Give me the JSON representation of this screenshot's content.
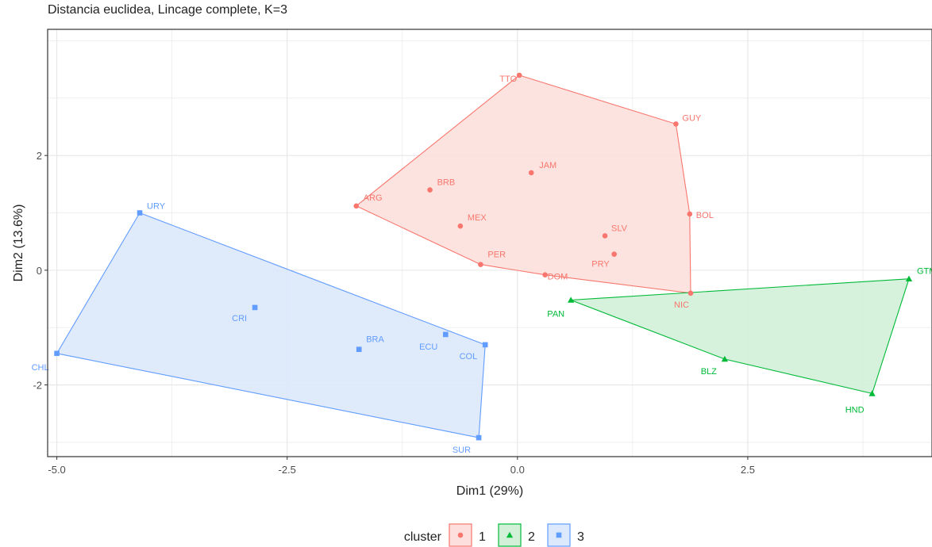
{
  "chart_data": {
    "type": "scatter",
    "title": "Distancia euclidea, Lincage complete, K=3",
    "xlabel": "Dim1 (29%)",
    "ylabel": "Dim2 (13.6%)",
    "xlim": [
      -5.1,
      4.5
    ],
    "ylim": [
      -3.25,
      4.2
    ],
    "x_ticks": [
      -5.0,
      -2.5,
      0.0,
      2.5
    ],
    "x_tick_labels": [
      "-5.0",
      "-2.5",
      "0.0",
      "2.5"
    ],
    "y_ticks": [
      -2,
      0,
      2
    ],
    "y_tick_labels": [
      "-2",
      "0",
      "2"
    ],
    "grid": true,
    "legend": {
      "title": "cluster",
      "position": "bottom",
      "entries": [
        "1",
        "2",
        "3"
      ]
    },
    "series": [
      {
        "name": "1",
        "color": "#f8766d",
        "fill": "#fde0dd",
        "marker": "circle",
        "points": [
          {
            "label": "TTO",
            "x": 0.02,
            "y": 3.4
          },
          {
            "label": "GUY",
            "x": 1.72,
            "y": 2.55
          },
          {
            "label": "JAM",
            "x": 0.15,
            "y": 1.7
          },
          {
            "label": "BRB",
            "x": -0.95,
            "y": 1.4
          },
          {
            "label": "ARG",
            "x": -1.75,
            "y": 1.12
          },
          {
            "label": "BOL",
            "x": 1.87,
            "y": 0.98
          },
          {
            "label": "MEX",
            "x": -0.62,
            "y": 0.77
          },
          {
            "label": "SLV",
            "x": 0.95,
            "y": 0.6
          },
          {
            "label": "PRY",
            "x": 1.05,
            "y": 0.28
          },
          {
            "label": "PER",
            "x": -0.4,
            "y": 0.1
          },
          {
            "label": "DOM",
            "x": 0.3,
            "y": -0.08
          },
          {
            "label": "NIC",
            "x": 1.88,
            "y": -0.4
          }
        ],
        "hull": [
          "TTO",
          "GUY",
          "BOL",
          "NIC",
          "DOM",
          "PER",
          "ARG"
        ]
      },
      {
        "name": "2",
        "color": "#00ba38",
        "fill": "#d2f0d8",
        "marker": "triangle",
        "points": [
          {
            "label": "PAN",
            "x": 0.58,
            "y": -0.52
          },
          {
            "label": "GTM",
            "x": 4.25,
            "y": -0.15
          },
          {
            "label": "BLZ",
            "x": 2.25,
            "y": -1.55
          },
          {
            "label": "HND",
            "x": 3.85,
            "y": -2.15
          }
        ],
        "hull": [
          "PAN",
          "GTM",
          "HND",
          "BLZ"
        ]
      },
      {
        "name": "3",
        "color": "#619cff",
        "fill": "#dce8fb",
        "marker": "square",
        "points": [
          {
            "label": "URY",
            "x": -4.1,
            "y": 1.0
          },
          {
            "label": "CRI",
            "x": -2.85,
            "y": -0.65
          },
          {
            "label": "BRA",
            "x": -1.72,
            "y": -1.38
          },
          {
            "label": "ECU",
            "x": -0.78,
            "y": -1.12
          },
          {
            "label": "COL",
            "x": -0.35,
            "y": -1.3
          },
          {
            "label": "CHL",
            "x": -5.0,
            "y": -1.45
          },
          {
            "label": "SUR",
            "x": -0.42,
            "y": -2.92
          }
        ],
        "hull": [
          "URY",
          "COL",
          "SUR",
          "CHL"
        ]
      }
    ]
  }
}
